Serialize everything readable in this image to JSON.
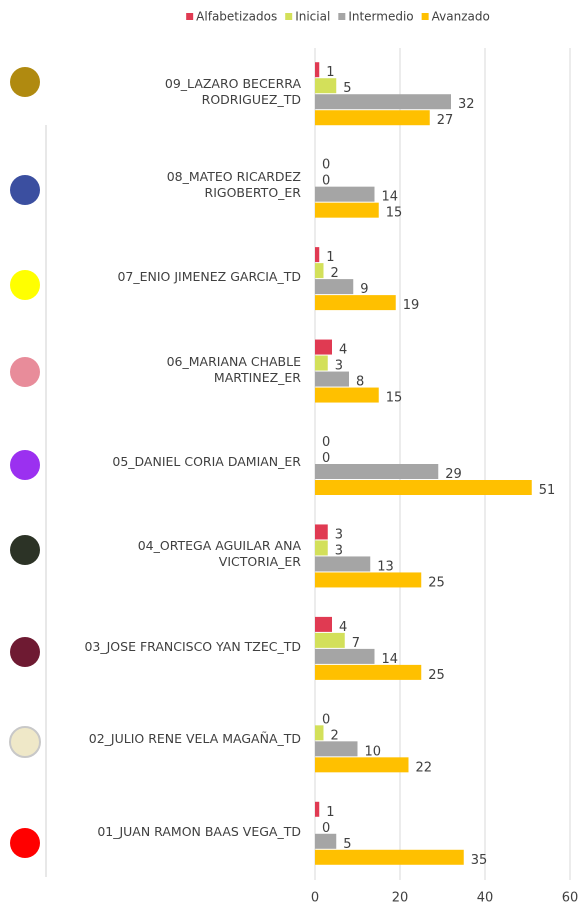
{
  "chart_data": {
    "type": "barh",
    "categories": [
      "09_LAZARO BECERRA\nRODRIGUEZ_TD",
      "08_MATEO RICARDEZ\nRIGOBERTO_ER",
      "07_ENIO JIMENEZ GARCIA_TD",
      "06_MARIANA CHABLE\nMARTINEZ_ER",
      "05_DANIEL CORIA DAMIAN_ER",
      "04_ORTEGA AGUILAR ANA\nVICTORIA_ER",
      "03_JOSE FRANCISCO YAN TZEC_TD",
      "02_JULIO RENE VELA MAGAÑA_TD",
      "01_JUAN RAMON BAAS VEGA_TD"
    ],
    "series": [
      {
        "name": "Alfabetizados",
        "color": "#e03a52",
        "values": [
          1,
          0,
          1,
          4,
          0,
          3,
          4,
          0,
          1
        ]
      },
      {
        "name": "Inicial",
        "color": "#d3e05a",
        "values": [
          5,
          0,
          2,
          3,
          0,
          3,
          7,
          2,
          0
        ]
      },
      {
        "name": "Intermedio",
        "color": "#a5a5a5",
        "values": [
          32,
          14,
          9,
          8,
          29,
          13,
          14,
          10,
          5
        ]
      },
      {
        "name": "Avanzado",
        "color": "#ffc000",
        "values": [
          27,
          15,
          19,
          15,
          51,
          25,
          25,
          22,
          35
        ]
      }
    ],
    "xlim": [
      0,
      60
    ],
    "xticks": [
      0,
      20,
      40,
      60
    ],
    "grid": true,
    "legend": "top"
  }
}
